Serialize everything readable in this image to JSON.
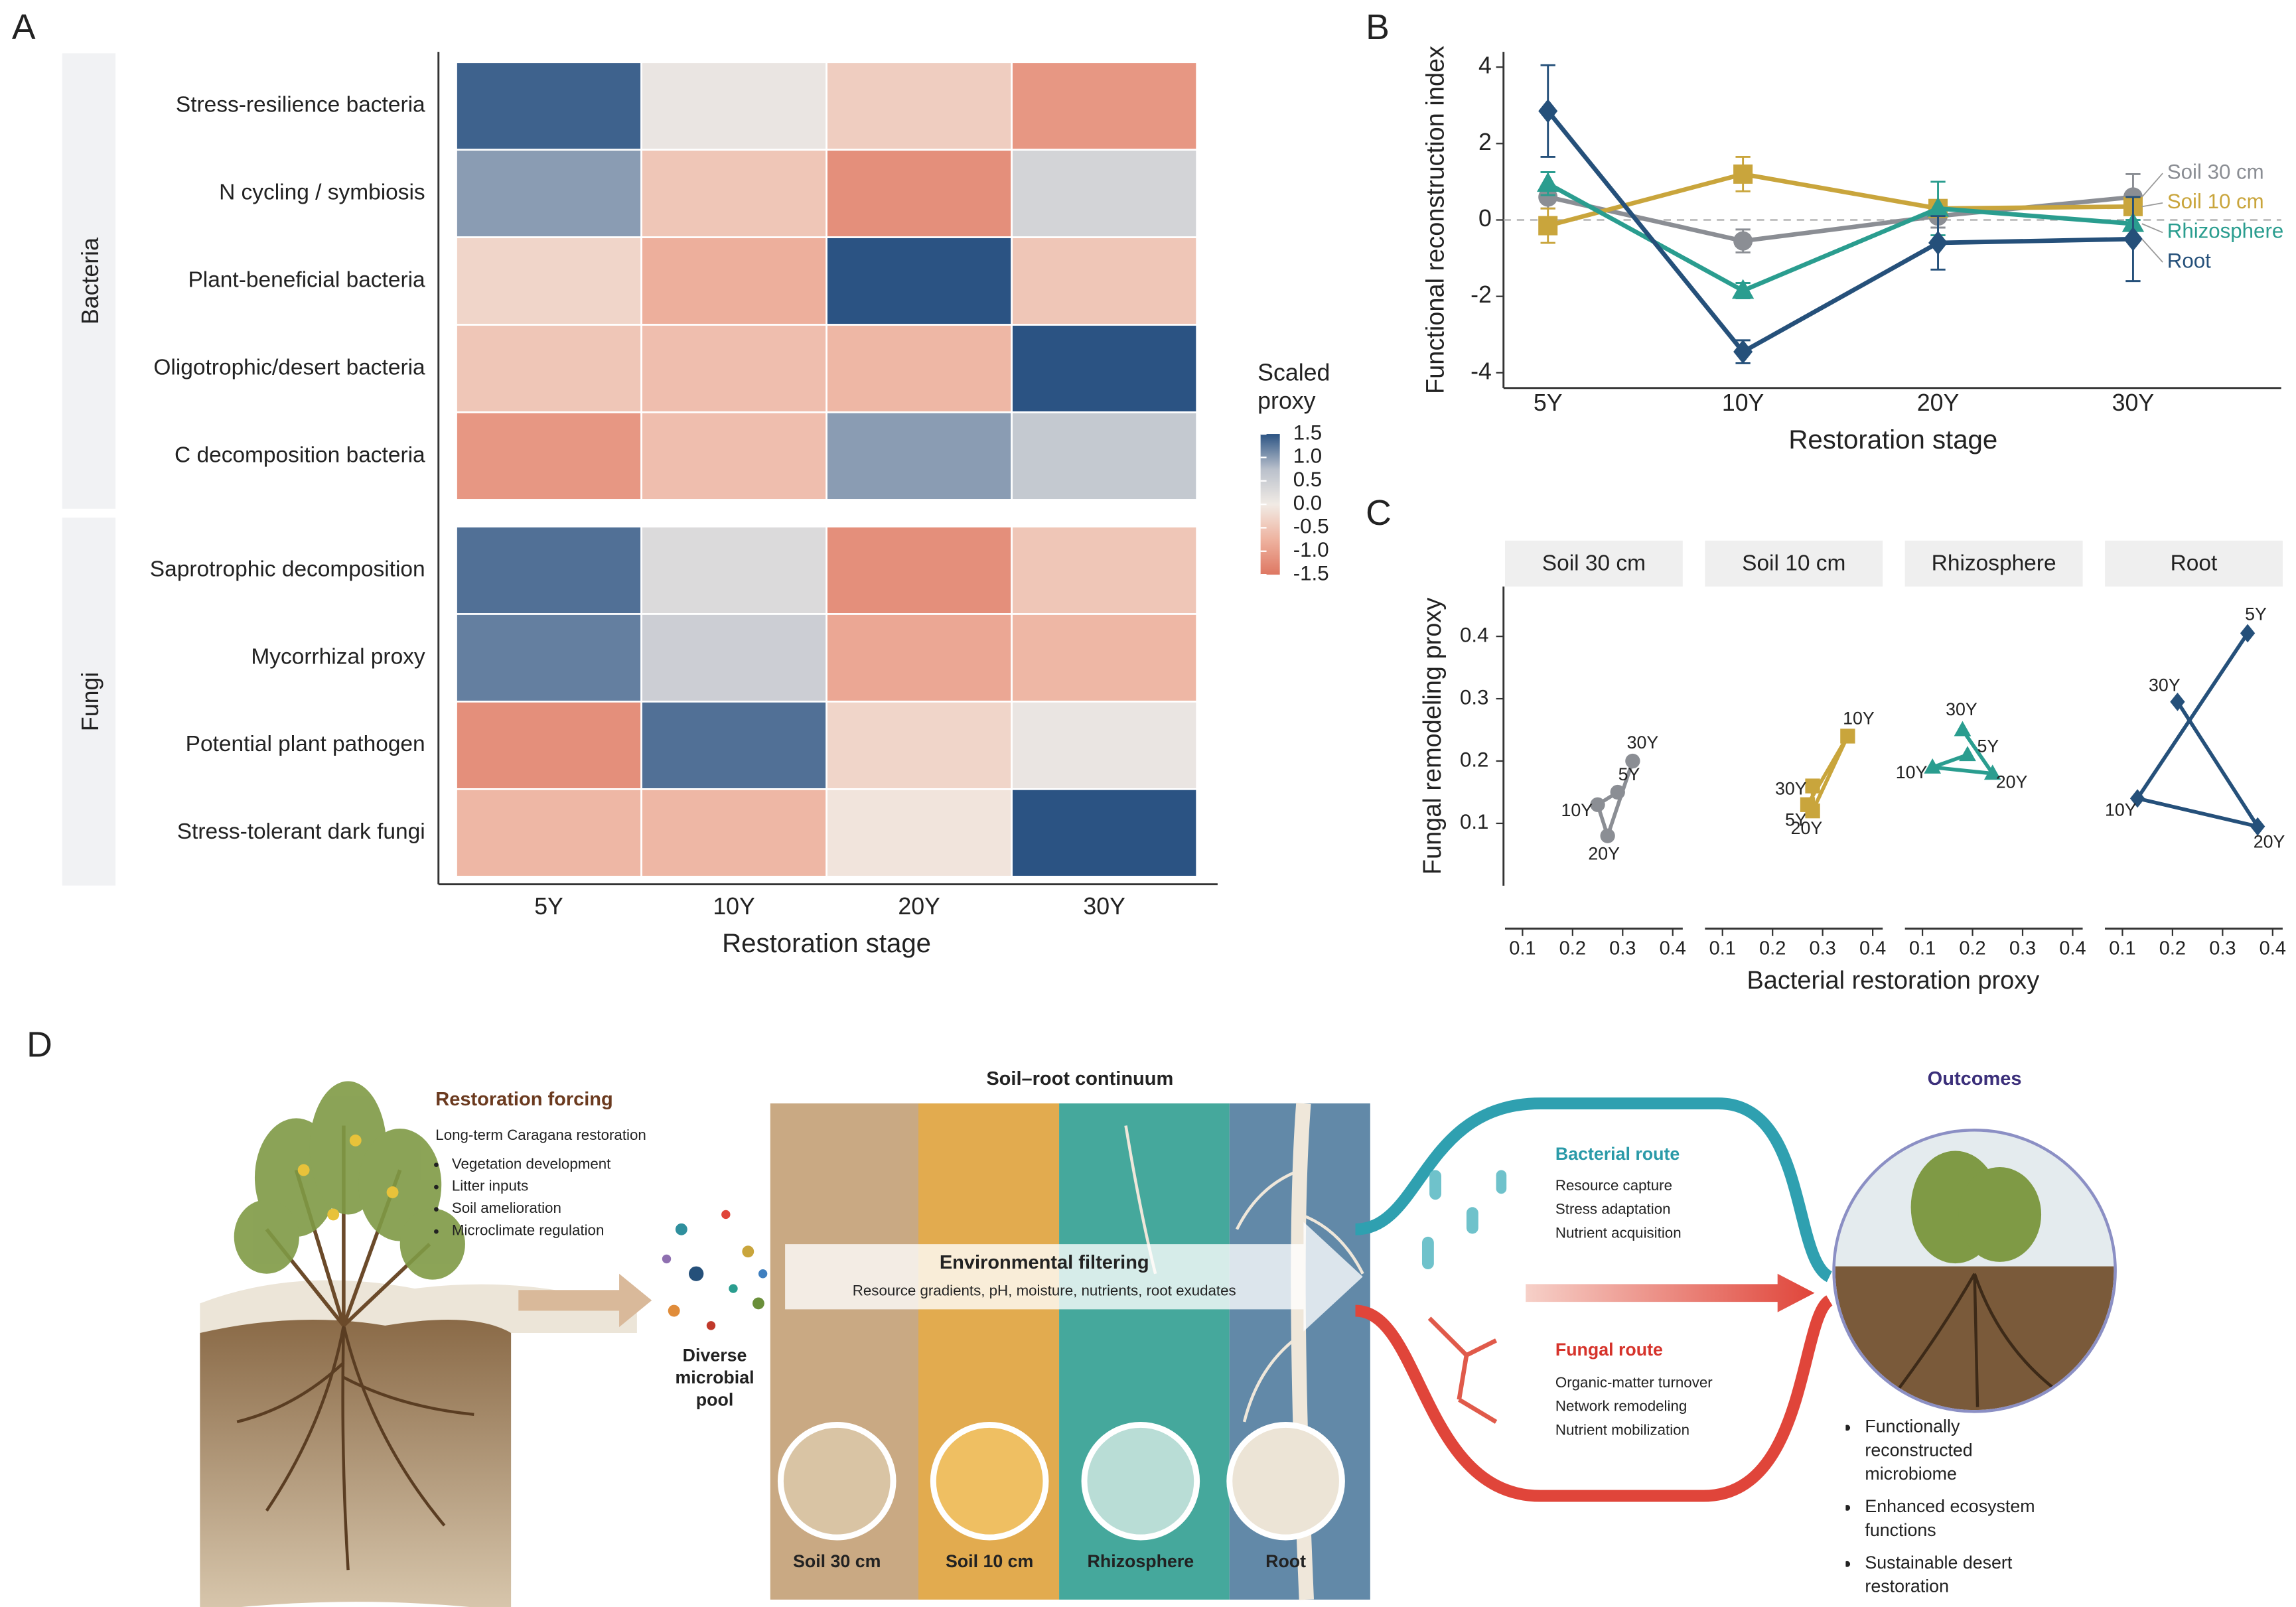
{
  "chart_data": [
    {
      "type": "heatmap",
      "panel_label": "A",
      "columns": [
        "5Y",
        "10Y",
        "20Y",
        "30Y"
      ],
      "xlabel": "Restoration stage",
      "groups": [
        {
          "name": "Bacteria",
          "rows": [
            "Stress-resilience bacteria",
            "N cycling / symbiosis",
            "Plant-beneficial bacteria",
            "Oligotrophic/desert bacteria",
            "C decomposition bacteria"
          ],
          "values": [
            [
              1.4,
              0.1,
              -0.4,
              -1.1
            ],
            [
              1.0,
              -0.5,
              -1.2,
              0.4
            ],
            [
              -0.3,
              -0.8,
              1.5,
              -0.5
            ],
            [
              -0.5,
              -0.6,
              -0.7,
              1.5
            ],
            [
              -1.1,
              -0.6,
              1.0,
              0.6
            ]
          ]
        },
        {
          "name": "Fungi",
          "rows": [
            "Saprotrophic decomposition",
            "Mycorrhizal proxy",
            "Potential plant pathogen",
            "Stress-tolerant dark fungi"
          ],
          "values": [
            [
              1.3,
              0.3,
              -1.2,
              -0.5
            ],
            [
              1.2,
              0.5,
              -0.9,
              -0.7
            ],
            [
              -1.2,
              1.3,
              -0.3,
              0.1
            ],
            [
              -0.7,
              -0.7,
              -0.1,
              1.5
            ]
          ]
        }
      ],
      "colorbar_title": "Scaled proxy",
      "clim": [
        -1.5,
        1.5
      ],
      "cticks": [
        1.5,
        {
          "value": 1,
          "label": "1.0"
        },
        0.5,
        {
          "value": 0,
          "label": "0.0"
        },
        -0.5,
        {
          "value": -1,
          "label": "-1.0"
        },
        -1.5
      ],
      "colors": [
        "#de7762",
        "#eeb3a0",
        "#f1ebe5",
        "#b9c0cb",
        "#2b5383"
      ]
    },
    {
      "type": "line",
      "panel_label": "B",
      "categories": [
        "5Y",
        "10Y",
        "20Y",
        "30Y"
      ],
      "xlabel": "Restoration stage",
      "ylabel": "Functional reconstruction index",
      "ylim": [
        -4.4,
        4.4
      ],
      "yticks": [
        -4,
        -2,
        0,
        2,
        4
      ],
      "series": [
        {
          "name": "Soil 30 cm",
          "color": "#8b8e94",
          "marker": "circle",
          "values": [
            0.6,
            -0.55,
            0.1,
            0.6
          ],
          "errors": [
            0.3,
            0.3,
            0.3,
            0.6
          ]
        },
        {
          "name": "Soil 10 cm",
          "color": "#c9a53c",
          "marker": "square",
          "values": [
            -0.15,
            1.2,
            0.3,
            0.35
          ],
          "errors": [
            0.45,
            0.45,
            0.2,
            0.2
          ]
        },
        {
          "name": "Rhizosphere",
          "color": "#2a9d8f",
          "marker": "triangle",
          "values": [
            0.95,
            -1.85,
            0.3,
            -0.1
          ],
          "errors": [
            0.3,
            0.2,
            0.7,
            0.1
          ]
        },
        {
          "name": "Root",
          "color": "#25507a",
          "marker": "diamond",
          "values": [
            2.85,
            -3.45,
            -0.6,
            -0.5
          ],
          "errors": [
            1.2,
            0.3,
            0.7,
            1.1
          ]
        }
      ]
    },
    {
      "type": "scatter",
      "panel_label": "C",
      "categories": [
        "5Y",
        "10Y",
        "20Y",
        "30Y"
      ],
      "xlabel": "Bacterial restoration proxy",
      "ylabel": "Fungal remodeling proxy",
      "xlim": [
        0.065,
        0.42
      ],
      "xticks": [
        0.1,
        0.2,
        0.3,
        0.4
      ],
      "ylim": [
        0,
        0.48
      ],
      "yticks": [
        0.1,
        0.2,
        0.3,
        0.4
      ],
      "series": [
        {
          "name": "Soil 30 cm",
          "color": "#8b8e94",
          "marker": "circle",
          "x": [
            0.29,
            0.25,
            0.27,
            0.32
          ],
          "y": [
            0.15,
            0.13,
            0.08,
            0.2
          ]
        },
        {
          "name": "Soil 10 cm",
          "color": "#c9a53c",
          "marker": "square",
          "x": [
            0.27,
            0.35,
            0.28,
            0.28
          ],
          "y": [
            0.13,
            0.24,
            0.12,
            0.16
          ]
        },
        {
          "name": "Rhizosphere",
          "color": "#2a9d8f",
          "marker": "triangle",
          "x": [
            0.19,
            0.12,
            0.24,
            0.18
          ],
          "y": [
            0.21,
            0.19,
            0.18,
            0.25
          ]
        },
        {
          "name": "Root",
          "color": "#25507a",
          "marker": "diamond",
          "x": [
            0.35,
            0.13,
            0.37,
            0.21
          ],
          "y": [
            0.405,
            0.14,
            0.095,
            0.295
          ]
        }
      ]
    }
  ],
  "diagram": {
    "panel_label": "D",
    "forcing": {
      "title": "Restoration forcing",
      "subtitle": "Long-term Caragana restoration",
      "items": [
        "Vegetation development",
        "Litter inputs",
        "Soil amelioration",
        "Microclimate regulation"
      ]
    },
    "pool": "Diverse microbial pool",
    "continuum": {
      "title": "Soil–root continuum",
      "filter_title": "Environmental filtering",
      "filter_text": "Resource gradients, pH, moisture, nutrients, root exudates",
      "compartments": [
        "Soil 30 cm",
        "Soil 10 cm",
        "Rhizosphere",
        "Root"
      ]
    },
    "bacterial_route": {
      "title": "Bacterial route",
      "items": [
        "Resource capture",
        "Stress adaptation",
        "Nutrient acquisition"
      ]
    },
    "fungal_route": {
      "title": "Fungal route",
      "items": [
        "Organic-matter turnover",
        "Network remodeling",
        "Nutrient mobilization"
      ]
    },
    "outcomes": {
      "title": "Outcomes",
      "items": [
        "Functionally reconstructed microbiome",
        "Enhanced ecosystem functions",
        "Sustainable desert restoration"
      ]
    }
  }
}
